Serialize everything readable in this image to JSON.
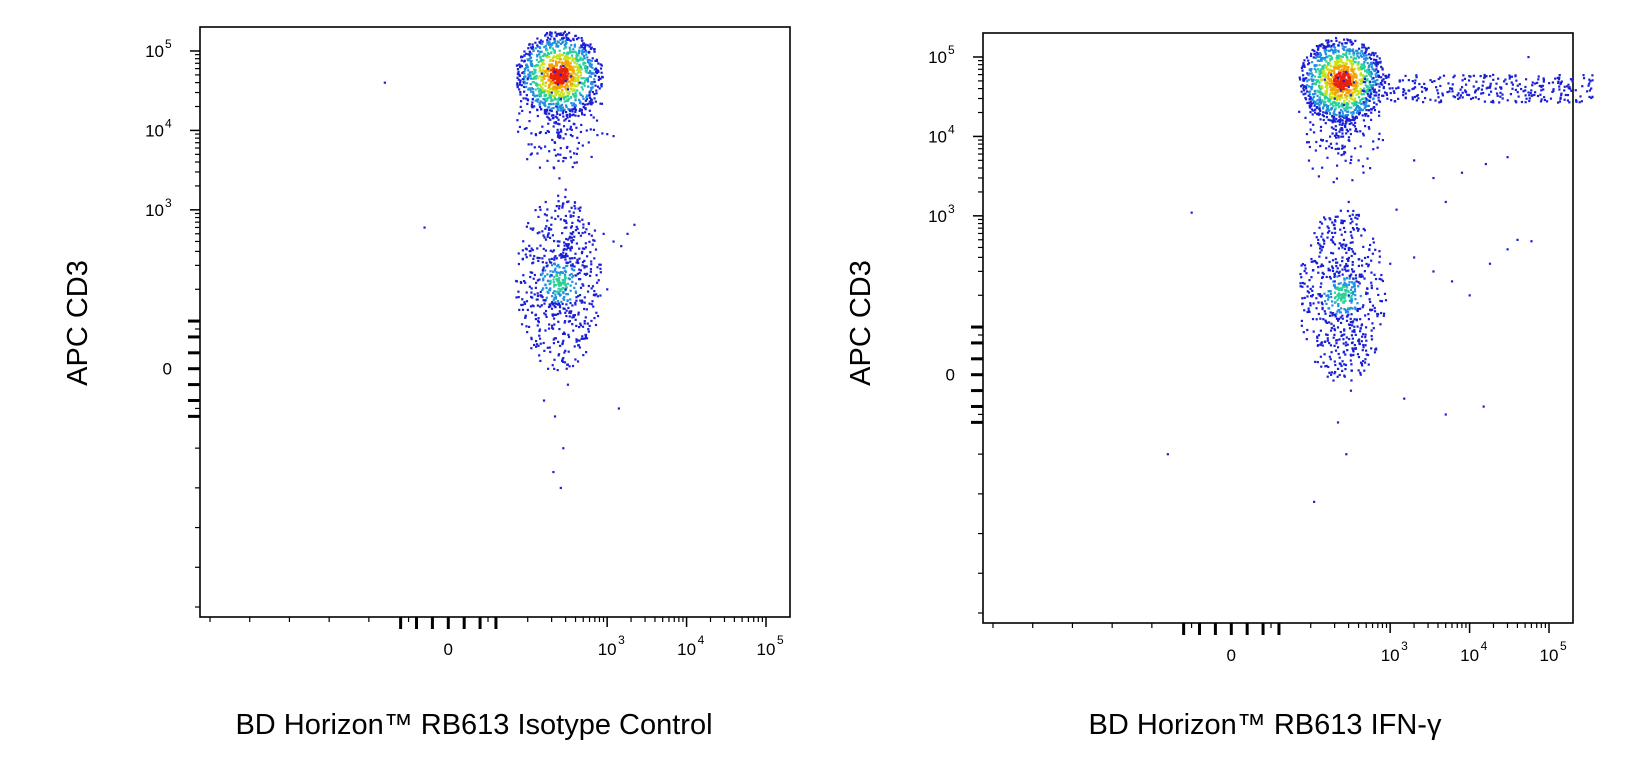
{
  "chart_data": [
    {
      "type": "scatter",
      "subtype": "flow-cytometry-density-dot-plot",
      "xlabel": "BD Horizon™ RB613 Isotype Control",
      "ylabel": "APC CD3",
      "x_scale": "biexponential",
      "y_scale": "biexponential",
      "x_ticks": [
        {
          "base": "0",
          "exp": ""
        },
        {
          "base": "10",
          "exp": "3"
        },
        {
          "base": "10",
          "exp": "4"
        },
        {
          "base": "10",
          "exp": "5"
        }
      ],
      "y_ticks": [
        {
          "base": "0",
          "exp": ""
        },
        {
          "base": "10",
          "exp": "3"
        },
        {
          "base": "10",
          "exp": "4"
        },
        {
          "base": "10",
          "exp": "5"
        }
      ],
      "xlim": [
        -300,
        150000
      ],
      "ylim": [
        -300,
        150000
      ],
      "grid": false,
      "populations": [
        {
          "x_center": 250,
          "y_center": 50000,
          "spread": "dense",
          "description_visible": false
        },
        {
          "x_center": 250,
          "y_center": 120,
          "spread": "moderate"
        }
      ],
      "points": [
        [
          260,
          50000
        ],
        [
          220,
          55000
        ],
        [
          300,
          42000
        ],
        [
          180,
          60000
        ],
        [
          240,
          38000
        ],
        [
          350,
          48000
        ],
        [
          150,
          52000
        ],
        [
          280,
          65000
        ],
        [
          200,
          30000
        ],
        [
          320,
          33000
        ],
        [
          260,
          25000
        ],
        [
          230,
          20000
        ],
        [
          280,
          15000
        ],
        [
          250,
          12000
        ],
        [
          300,
          9000
        ],
        [
          220,
          7000
        ],
        [
          260,
          6000
        ],
        [
          240,
          5000
        ],
        [
          300,
          4500
        ],
        [
          450,
          40000
        ],
        [
          600,
          30000
        ],
        [
          100,
          45000
        ],
        [
          -80,
          40000
        ],
        [
          1000,
          9000
        ],
        [
          1200,
          8500
        ],
        [
          250,
          2500
        ],
        [
          300,
          1800
        ],
        [
          280,
          1200
        ],
        [
          200,
          800
        ],
        [
          350,
          600
        ],
        [
          250,
          400
        ],
        [
          200,
          150
        ],
        [
          300,
          100
        ],
        [
          250,
          50
        ],
        [
          180,
          0
        ],
        [
          320,
          -20
        ],
        [
          220,
          -60
        ],
        [
          280,
          -100
        ],
        [
          150,
          80
        ],
        [
          350,
          200
        ],
        [
          400,
          150
        ],
        [
          120,
          30
        ],
        [
          260,
          -150
        ],
        [
          500,
          600
        ],
        [
          700,
          550
        ],
        [
          900,
          500
        ],
        [
          1200,
          400
        ],
        [
          1500,
          350
        ],
        [
          1800,
          500
        ],
        [
          2200,
          650
        ],
        [
          1000,
          100
        ],
        [
          1400,
          -50
        ],
        [
          -30,
          600
        ],
        [
          190,
          220
        ],
        [
          330,
          40
        ],
        [
          210,
          -130
        ],
        [
          270,
          10
        ],
        [
          160,
          -40
        ]
      ]
    },
    {
      "type": "scatter",
      "subtype": "flow-cytometry-density-dot-plot",
      "xlabel": "BD Horizon™ RB613 IFN-γ",
      "ylabel": "APC CD3",
      "x_scale": "biexponential",
      "y_scale": "biexponential",
      "x_ticks": [
        {
          "base": "0",
          "exp": ""
        },
        {
          "base": "10",
          "exp": "3"
        },
        {
          "base": "10",
          "exp": "4"
        },
        {
          "base": "10",
          "exp": "5"
        }
      ],
      "y_ticks": [
        {
          "base": "0",
          "exp": ""
        },
        {
          "base": "10",
          "exp": "3"
        },
        {
          "base": "10",
          "exp": "4"
        },
        {
          "base": "10",
          "exp": "5"
        }
      ],
      "xlim": [
        -300,
        150000
      ],
      "ylim": [
        -300,
        150000
      ],
      "grid": false,
      "populations": [
        {
          "x_center": 250,
          "y_center": 50000,
          "spread": "dense"
        },
        {
          "x_center": 250,
          "y_center": 100,
          "spread": "moderate"
        },
        {
          "x_center": 10000,
          "y_center": 40000,
          "spread": "sparse-tail"
        }
      ],
      "points": [
        [
          260,
          50000
        ],
        [
          220,
          55000
        ],
        [
          300,
          42000
        ],
        [
          180,
          60000
        ],
        [
          240,
          38000
        ],
        [
          350,
          48000
        ],
        [
          150,
          52000
        ],
        [
          280,
          65000
        ],
        [
          200,
          30000
        ],
        [
          320,
          33000
        ],
        [
          260,
          25000
        ],
        [
          230,
          20000
        ],
        [
          280,
          15000
        ],
        [
          250,
          12000
        ],
        [
          300,
          9000
        ],
        [
          220,
          7000
        ],
        [
          260,
          6000
        ],
        [
          400,
          5000
        ],
        [
          600,
          40000
        ],
        [
          900,
          35000
        ],
        [
          1500,
          38000
        ],
        [
          2500,
          42000
        ],
        [
          4000,
          35000
        ],
        [
          6000,
          40000
        ],
        [
          9000,
          45000
        ],
        [
          12000,
          38000
        ],
        [
          18000,
          42000
        ],
        [
          25000,
          40000
        ],
        [
          35000,
          45000
        ],
        [
          50000,
          38000
        ],
        [
          80000,
          42000
        ],
        [
          100000,
          47000
        ],
        [
          55000,
          100000
        ],
        [
          2000,
          5000
        ],
        [
          3500,
          3000
        ],
        [
          8000,
          3500
        ],
        [
          16000,
          4500
        ],
        [
          30000,
          5500
        ],
        [
          1200,
          1200
        ],
        [
          5000,
          1500
        ],
        [
          300,
          1500
        ],
        [
          200,
          700
        ],
        [
          250,
          400
        ],
        [
          200,
          150
        ],
        [
          300,
          100
        ],
        [
          250,
          50
        ],
        [
          180,
          0
        ],
        [
          320,
          -20
        ],
        [
          220,
          -60
        ],
        [
          280,
          -100
        ],
        [
          150,
          80
        ],
        [
          350,
          200
        ],
        [
          1000,
          250
        ],
        [
          2000,
          300
        ],
        [
          3500,
          200
        ],
        [
          6000,
          150
        ],
        [
          10000,
          100
        ],
        [
          18000,
          250
        ],
        [
          30000,
          380
        ],
        [
          40000,
          500
        ],
        [
          60000,
          480
        ],
        [
          1500,
          -30
        ],
        [
          5000,
          -50
        ],
        [
          15000,
          -40
        ],
        [
          -50,
          1100
        ],
        [
          -80,
          -100
        ],
        [
          110,
          -160
        ],
        [
          190,
          220
        ],
        [
          330,
          40
        ]
      ]
    }
  ]
}
